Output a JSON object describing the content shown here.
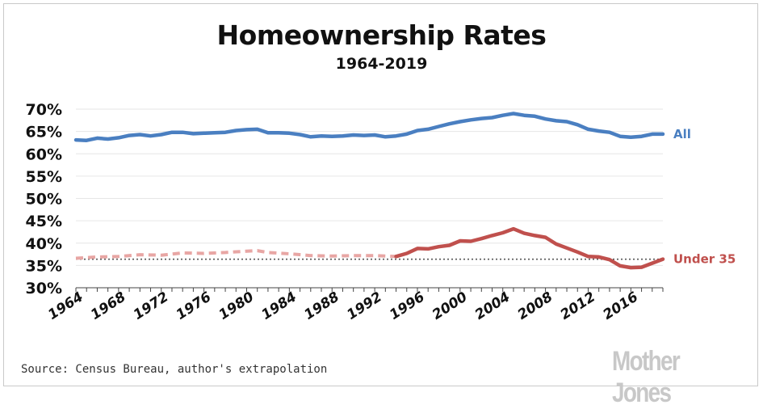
{
  "chart_data": {
    "type": "line",
    "title": "Homeownership Rates",
    "subtitle": "1964-2019",
    "xlabel": "",
    "ylabel": "",
    "ylim": [
      30,
      70
    ],
    "xlim": [
      1964,
      2019
    ],
    "y_ticks": [
      "30%",
      "35%",
      "40%",
      "45%",
      "50%",
      "55%",
      "60%",
      "65%",
      "70%"
    ],
    "x_ticks": [
      "1964",
      "1968",
      "1972",
      "1976",
      "1980",
      "1984",
      "1988",
      "1992",
      "1996",
      "2000",
      "2004",
      "2008",
      "2012",
      "2016"
    ],
    "grid": true,
    "reference_line": {
      "y": 36.4,
      "style": "dotted"
    },
    "series": [
      {
        "name": "All",
        "color": "#4a7fc1",
        "style": "solid",
        "x": [
          1964,
          1965,
          1966,
          1967,
          1968,
          1969,
          1970,
          1971,
          1972,
          1973,
          1974,
          1975,
          1976,
          1977,
          1978,
          1979,
          1980,
          1981,
          1982,
          1983,
          1984,
          1985,
          1986,
          1987,
          1988,
          1989,
          1990,
          1991,
          1992,
          1993,
          1994,
          1995,
          1996,
          1997,
          1998,
          1999,
          2000,
          2001,
          2002,
          2003,
          2004,
          2005,
          2006,
          2007,
          2008,
          2009,
          2010,
          2011,
          2012,
          2013,
          2014,
          2015,
          2016,
          2017,
          2018,
          2019
        ],
        "values": [
          63.1,
          63.0,
          63.5,
          63.3,
          63.6,
          64.1,
          64.3,
          64.0,
          64.3,
          64.8,
          64.8,
          64.5,
          64.6,
          64.7,
          64.8,
          65.2,
          65.4,
          65.5,
          64.7,
          64.7,
          64.6,
          64.3,
          63.8,
          64.0,
          63.9,
          64.0,
          64.2,
          64.1,
          64.2,
          63.8,
          64.0,
          64.4,
          65.2,
          65.5,
          66.1,
          66.7,
          67.2,
          67.6,
          67.9,
          68.1,
          68.6,
          69.0,
          68.6,
          68.4,
          67.8,
          67.4,
          67.2,
          66.5,
          65.5,
          65.1,
          64.8,
          63.9,
          63.7,
          63.9,
          64.4,
          64.4
        ]
      },
      {
        "name": "Under 35",
        "color": "#c0504d",
        "style": "dashed-then-solid",
        "dashed_until": 1994,
        "x": [
          1964,
          1966,
          1968,
          1970,
          1972,
          1974,
          1976,
          1978,
          1980,
          1981,
          1982,
          1984,
          1986,
          1988,
          1990,
          1992,
          1994,
          1995,
          1996,
          1997,
          1998,
          1999,
          2000,
          2001,
          2002,
          2003,
          2004,
          2005,
          2006,
          2007,
          2008,
          2009,
          2010,
          2011,
          2012,
          2013,
          2014,
          2015,
          2016,
          2017,
          2018,
          2019
        ],
        "values": [
          36.6,
          36.9,
          37.0,
          37.4,
          37.3,
          37.8,
          37.7,
          37.9,
          38.2,
          38.3,
          37.9,
          37.6,
          37.2,
          37.1,
          37.2,
          37.2,
          37.0,
          37.7,
          38.8,
          38.7,
          39.2,
          39.5,
          40.5,
          40.4,
          41.0,
          41.7,
          42.3,
          43.2,
          42.2,
          41.7,
          41.3,
          39.8,
          38.9,
          38.0,
          37.0,
          36.9,
          36.3,
          34.9,
          34.5,
          34.6,
          35.5,
          36.4
        ]
      }
    ]
  },
  "footer": {
    "source": "Source: Census Bureau, author's extrapolation",
    "brand": "Mother Jones"
  }
}
